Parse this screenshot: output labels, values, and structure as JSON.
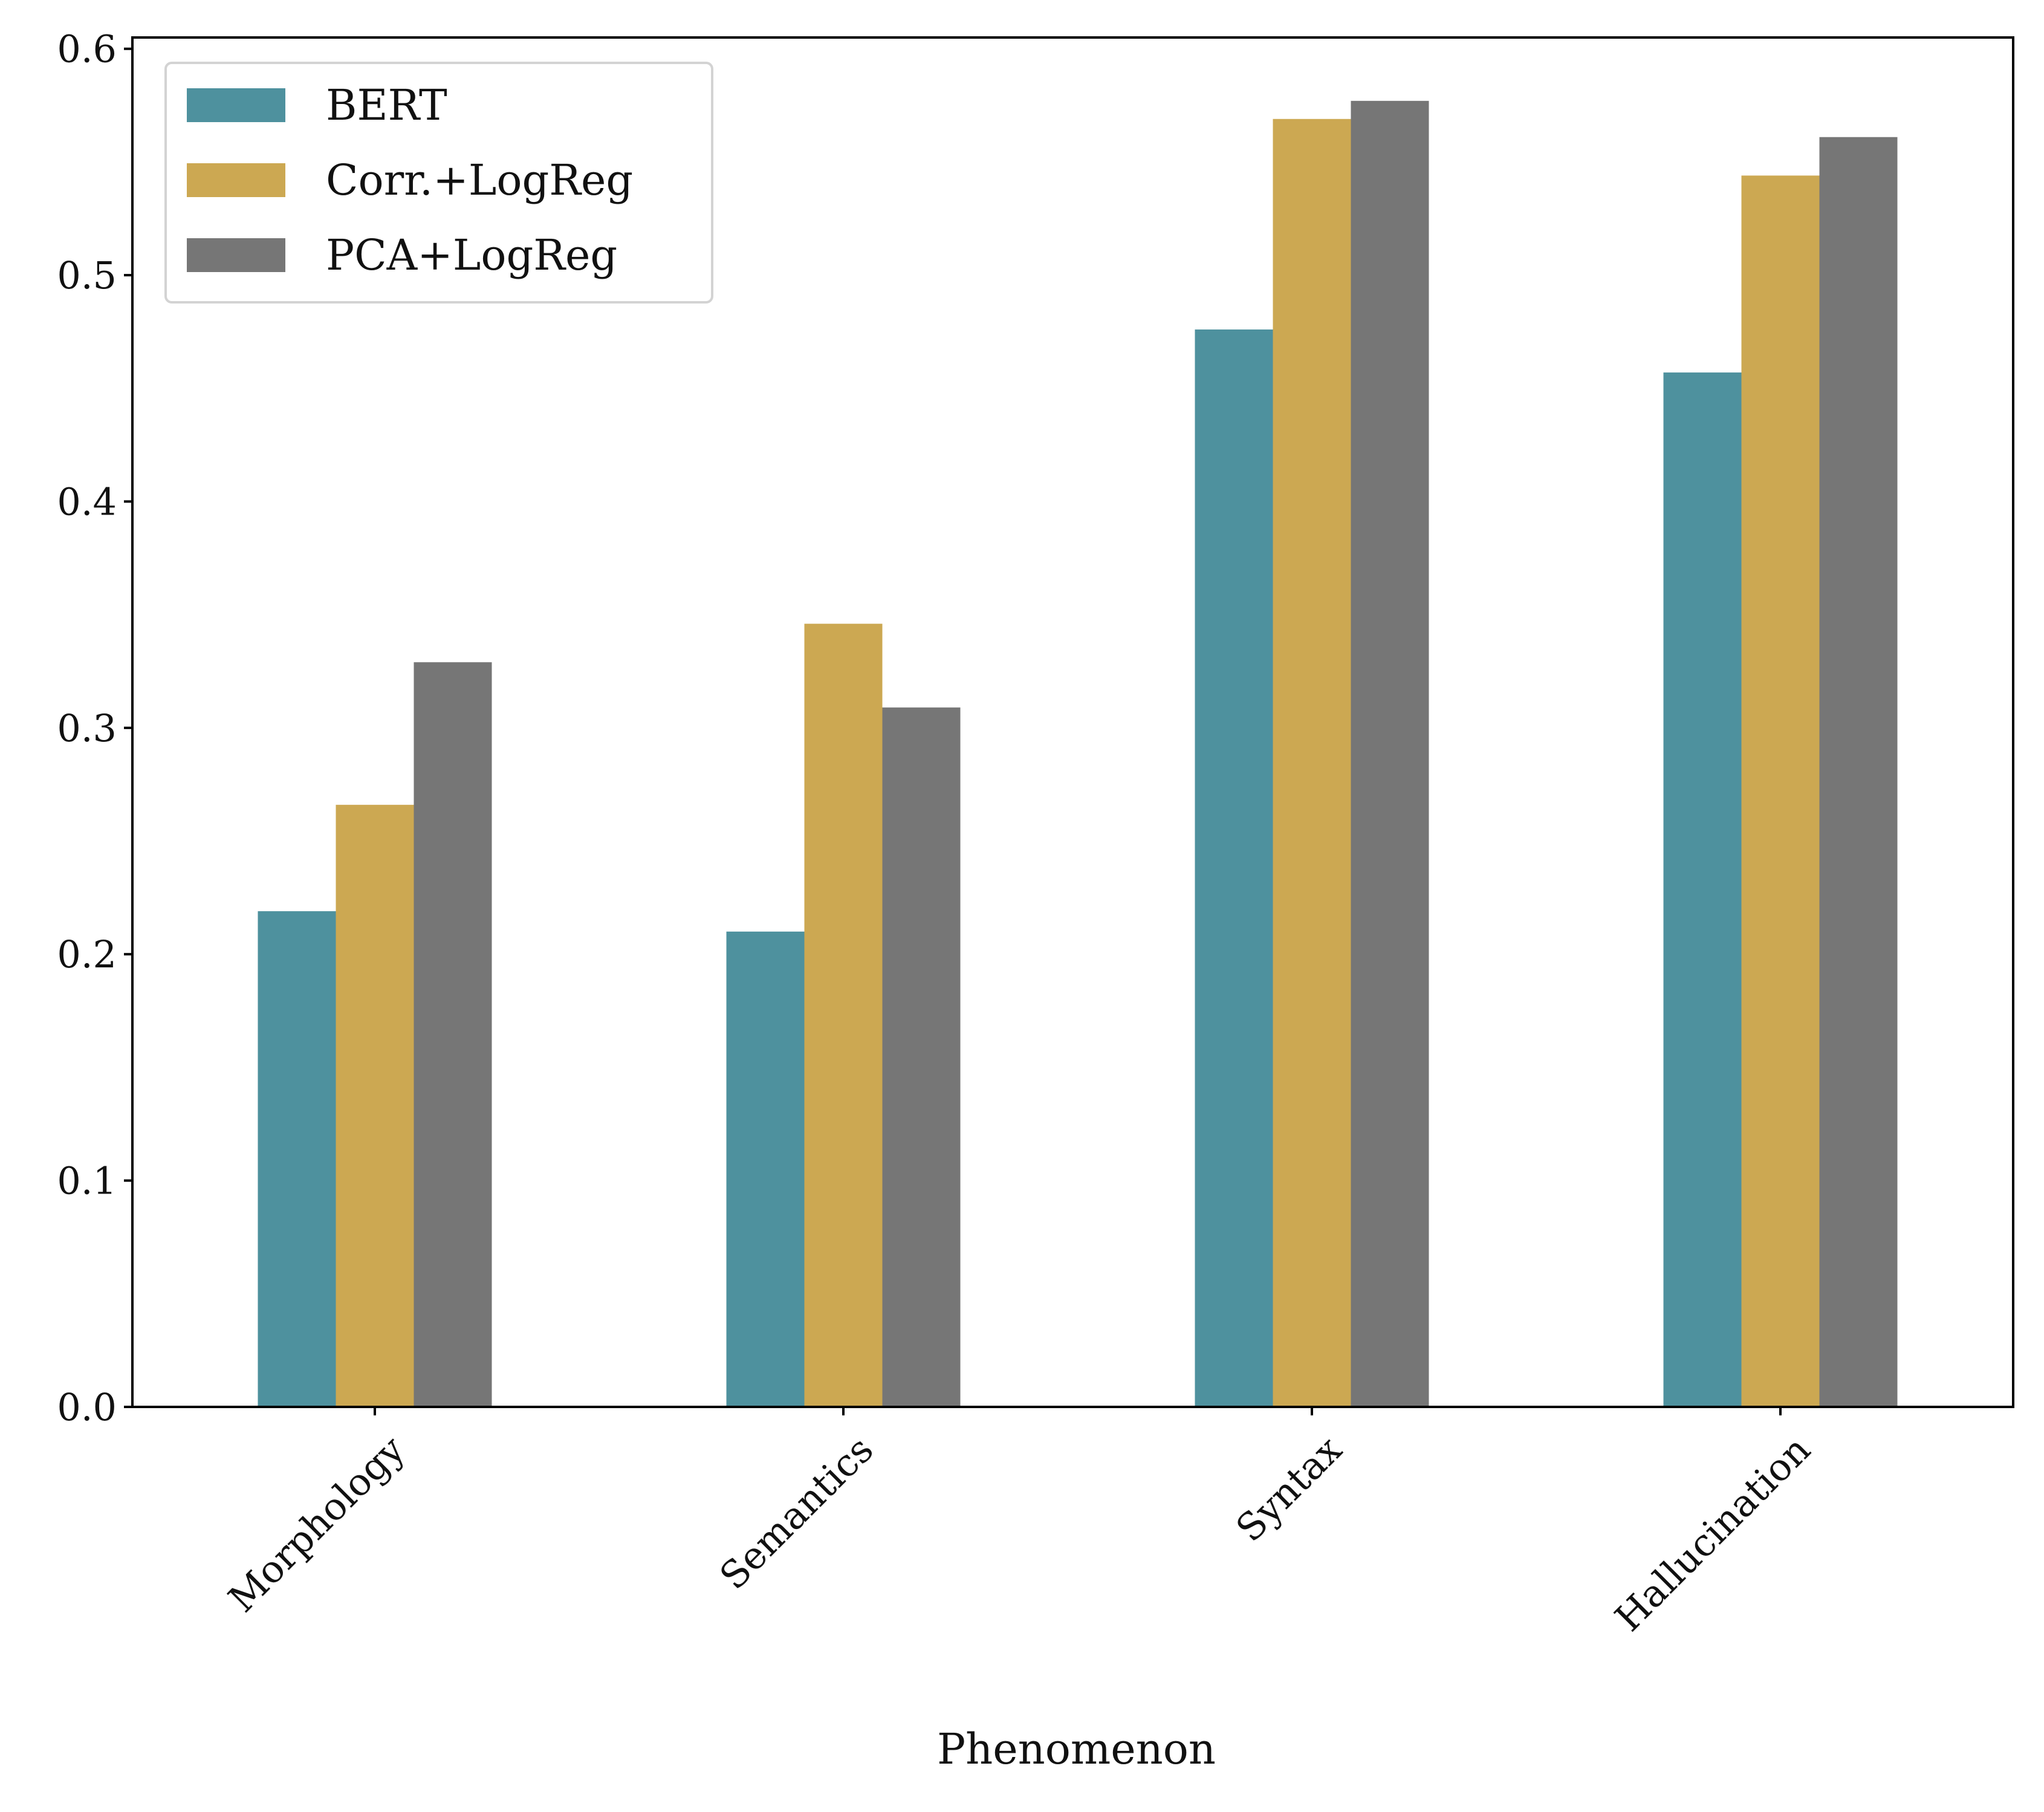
{
  "chart_data": {
    "type": "bar",
    "title": "",
    "xlabel": "Phenomenon",
    "ylabel": "",
    "categories": [
      "Morphology",
      "Semantics",
      "Syntax",
      "Hallucination"
    ],
    "series": [
      {
        "name": "BERT",
        "values": [
          0.219,
          0.21,
          0.476,
          0.457
        ]
      },
      {
        "name": "Corr.+LogReg",
        "values": [
          0.266,
          0.346,
          0.569,
          0.544
        ]
      },
      {
        "name": "PCA+LogReg",
        "values": [
          0.329,
          0.309,
          0.577,
          0.561
        ]
      }
    ],
    "ylim": [
      0,
      0.605
    ],
    "yticks": [
      "0.0",
      "0.1",
      "0.2",
      "0.3",
      "0.4",
      "0.5",
      "0.6"
    ],
    "legend_position": "top-left",
    "grid": false,
    "colors": {
      "BERT": "#4e919e",
      "Corr.+LogReg": "#cca852",
      "PCA+LogReg": "#767676"
    }
  }
}
